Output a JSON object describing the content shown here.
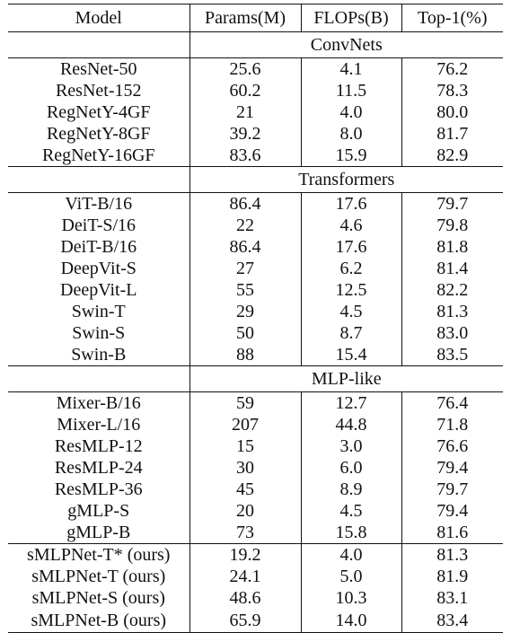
{
  "table": {
    "headers": [
      "Model",
      "Params(M)",
      "FLOPs(B)",
      "Top-1(%)"
    ],
    "sections": [
      {
        "label": "ConvNets",
        "rows": [
          [
            "ResNet-50",
            "25.6",
            "4.1",
            "76.2"
          ],
          [
            "ResNet-152",
            "60.2",
            "11.5",
            "78.3"
          ],
          [
            "RegNetY-4GF",
            "21",
            "4.0",
            "80.0"
          ],
          [
            "RegNetY-8GF",
            "39.2",
            "8.0",
            "81.7"
          ],
          [
            "RegNetY-16GF",
            "83.6",
            "15.9",
            "82.9"
          ]
        ]
      },
      {
        "label": "Transformers",
        "rows": [
          [
            "ViT-B/16",
            "86.4",
            "17.6",
            "79.7"
          ],
          [
            "DeiT-S/16",
            "22",
            "4.6",
            "79.8"
          ],
          [
            "DeiT-B/16",
            "86.4",
            "17.6",
            "81.8"
          ],
          [
            "DeepVit-S",
            "27",
            "6.2",
            "81.4"
          ],
          [
            "DeepVit-L",
            "55",
            "12.5",
            "82.2"
          ],
          [
            "Swin-T",
            "29",
            "4.5",
            "81.3"
          ],
          [
            "Swin-S",
            "50",
            "8.7",
            "83.0"
          ],
          [
            "Swin-B",
            "88",
            "15.4",
            "83.5"
          ]
        ]
      },
      {
        "label": "MLP-like",
        "rows": [
          [
            "Mixer-B/16",
            "59",
            "12.7",
            "76.4"
          ],
          [
            "Mixer-L/16",
            "207",
            "44.8",
            "71.8"
          ],
          [
            "ResMLP-12",
            "15",
            "3.0",
            "76.6"
          ],
          [
            "ResMLP-24",
            "30",
            "6.0",
            "79.4"
          ],
          [
            "ResMLP-36",
            "45",
            "8.9",
            "79.7"
          ],
          [
            "gMLP-S",
            "20",
            "4.5",
            "79.4"
          ],
          [
            "gMLP-B",
            "73",
            "15.8",
            "81.6"
          ]
        ]
      },
      {
        "label": "",
        "rows": [
          [
            "sMLPNet-T* (ours)",
            "19.2",
            "4.0",
            "81.3"
          ],
          [
            "sMLPNet-T (ours)",
            "24.1",
            "5.0",
            "81.9"
          ],
          [
            "sMLPNet-S (ours)",
            "48.6",
            "10.3",
            "83.1"
          ],
          [
            "sMLPNet-B (ours)",
            "65.9",
            "14.0",
            "83.4"
          ]
        ]
      }
    ]
  }
}
